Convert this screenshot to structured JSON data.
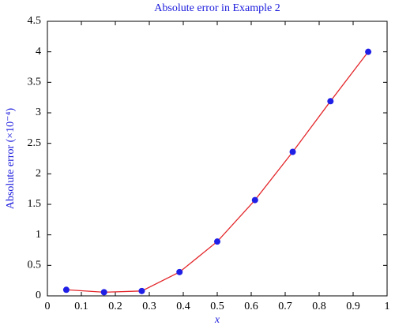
{
  "chart_data": {
    "type": "line",
    "title": "Absolute error in Example 2",
    "xlabel": "x",
    "ylabel": "Absolute error (×10⁻⁴)",
    "x": [
      0.0556,
      0.1667,
      0.2778,
      0.3889,
      0.5,
      0.6111,
      0.7222,
      0.8333,
      0.9444
    ],
    "values": [
      0.1,
      0.06,
      0.08,
      0.39,
      0.89,
      1.57,
      2.36,
      3.19,
      4.0
    ],
    "line_color": "#e3262a",
    "marker_color": "#1f1fe6",
    "xlim": [
      0,
      1
    ],
    "xticks": [
      0,
      0.1,
      0.2,
      0.3,
      0.4,
      0.5,
      0.6,
      0.7,
      0.8,
      0.9,
      1
    ],
    "ylim": [
      0,
      4.5
    ],
    "yticks": [
      0,
      0.5,
      1,
      1.5,
      2,
      2.5,
      3,
      3.5,
      4,
      4.5
    ],
    "grid": false
  }
}
